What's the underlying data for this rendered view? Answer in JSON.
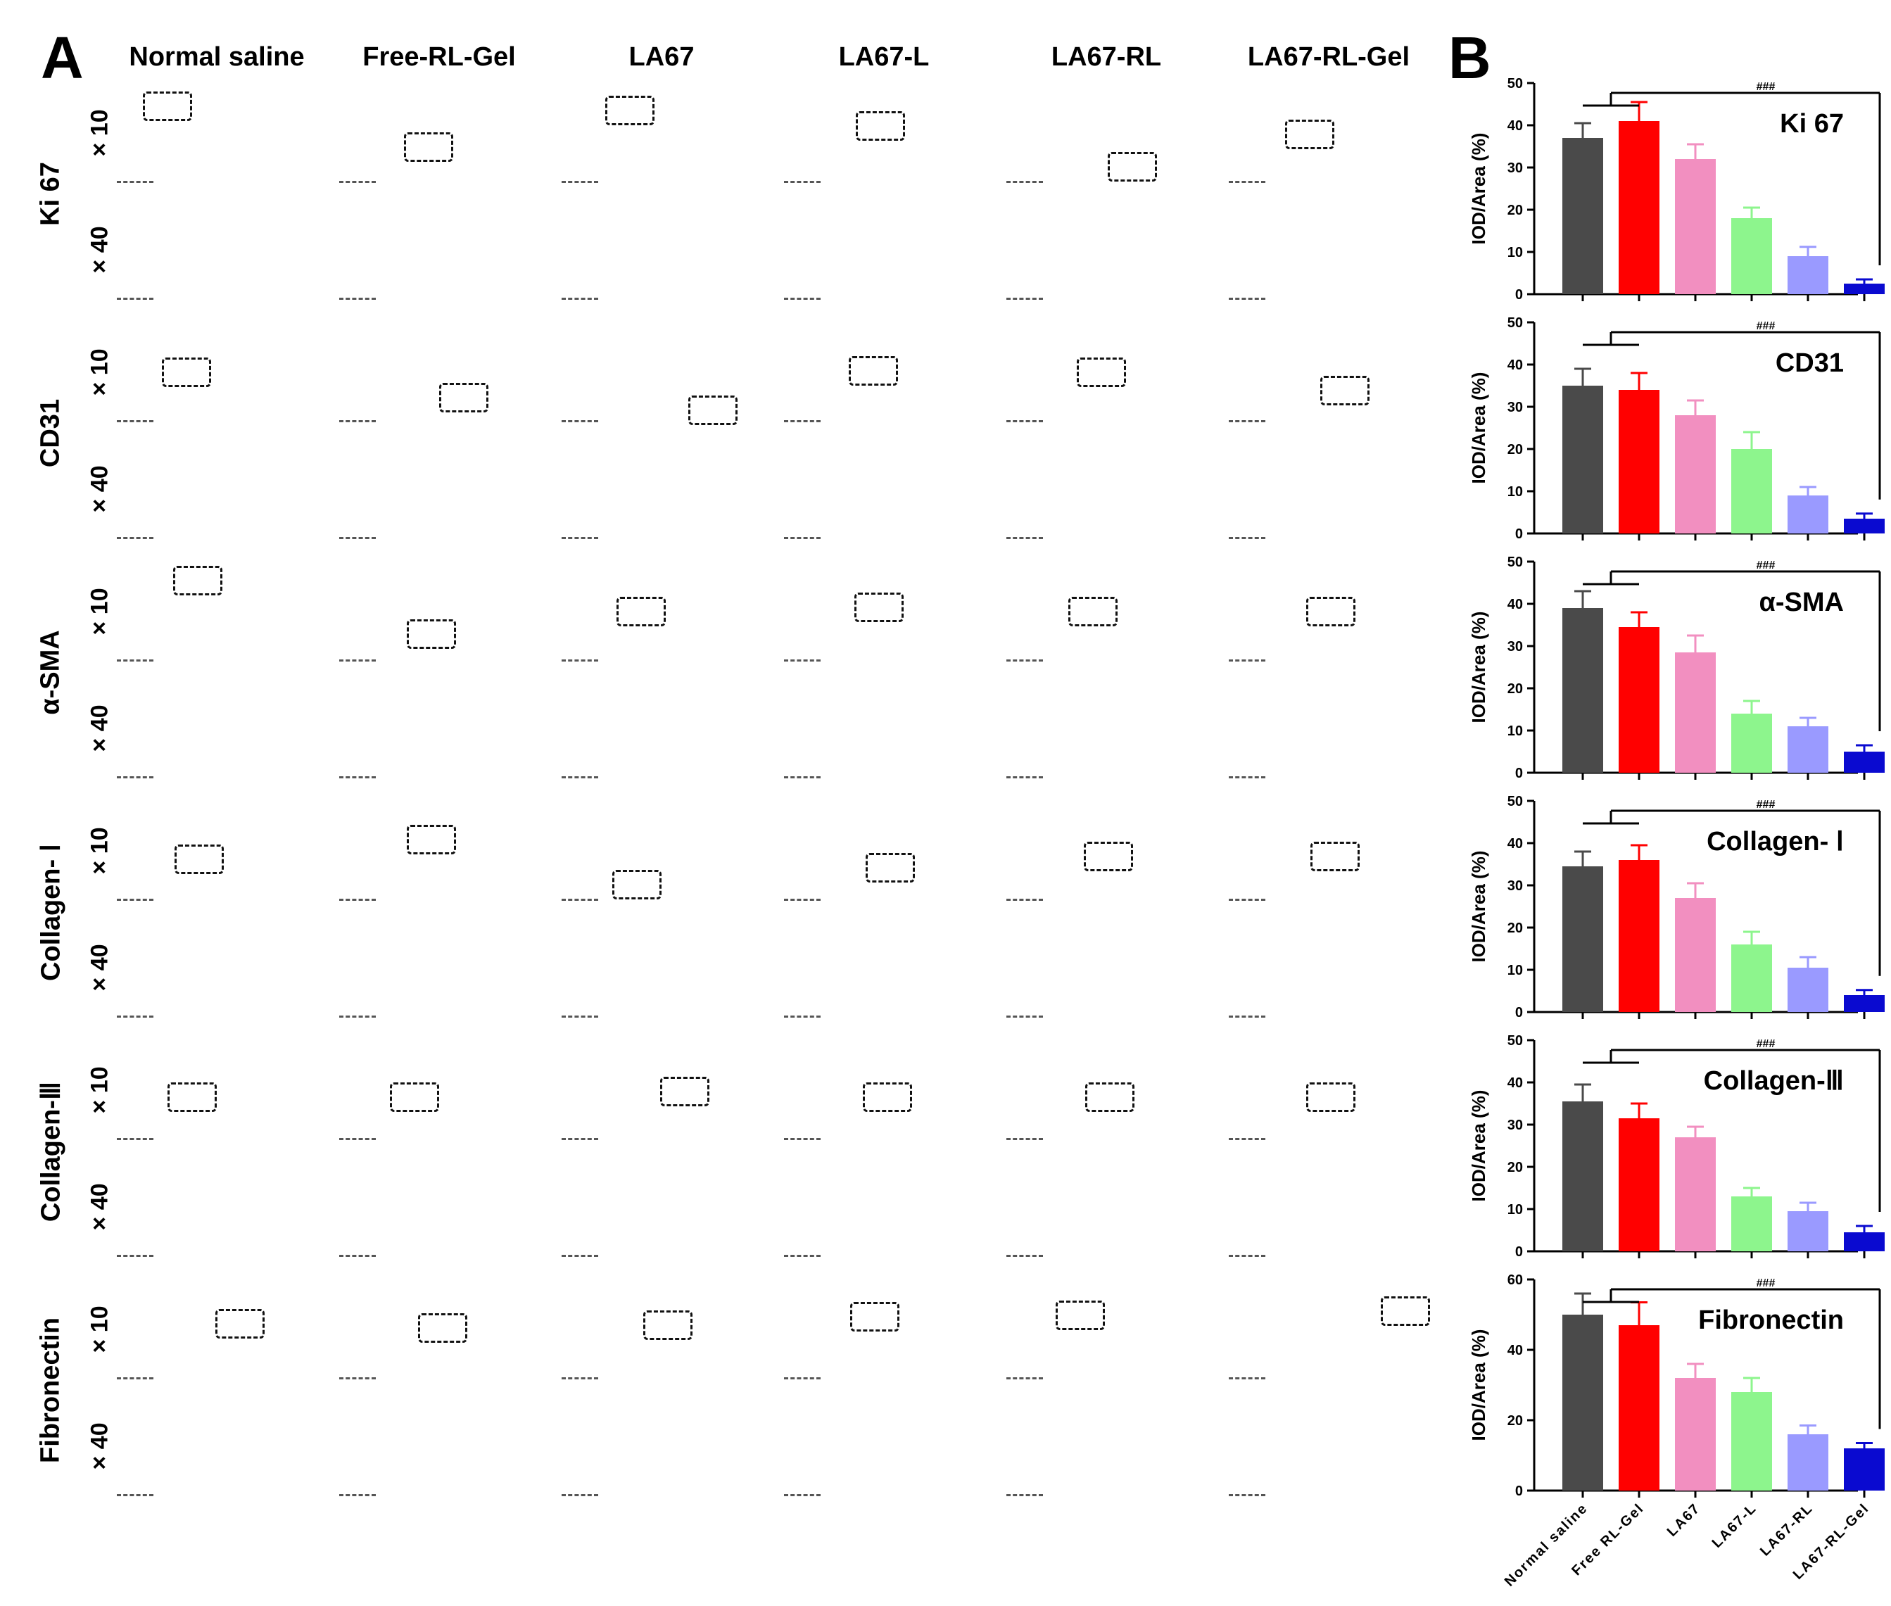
{
  "panels": {
    "a": "A",
    "b": "B"
  },
  "columns": [
    "Normal saline",
    "Free-RL-Gel",
    "LA67",
    "LA67-L",
    "LA67-RL",
    "LA67-RL-Gel"
  ],
  "markers": [
    "Ki 67",
    "CD31",
    "α-SMA",
    "Collagen- Ⅰ",
    "Collagen-Ⅲ",
    "Fibronectin"
  ],
  "magnifications": {
    "low": "× 10",
    "high": "× 40"
  },
  "colors": {
    "bar_colors": [
      "#4a4a4a",
      "#ff0000",
      "#f28fc0",
      "#8df58d",
      "#9a9aff",
      "#0a0ad0"
    ],
    "brown_stain": "#c49a6c",
    "purple_stain": "#b3b0d8",
    "bg_stain": "#e9e1d6"
  },
  "chart_data": [
    {
      "type": "bar",
      "title": "Ki 67",
      "ylabel": "IOD/Area (%)",
      "ylim": [
        0,
        50
      ],
      "yticks": [
        0,
        10,
        20,
        30,
        40,
        50
      ],
      "categories": [
        "Normal saline",
        "Free RL-Gel",
        "LA67",
        "LA67-L",
        "LA67-RL",
        "LA67-RL-Gel"
      ],
      "values": [
        37,
        41,
        32,
        18,
        9,
        2.5
      ],
      "errors": [
        3.5,
        4.5,
        3.5,
        2.5,
        2.2,
        1.0
      ],
      "significance": "###"
    },
    {
      "type": "bar",
      "title": "CD31",
      "ylabel": "IOD/Area (%)",
      "ylim": [
        0,
        50
      ],
      "yticks": [
        0,
        10,
        20,
        30,
        40,
        50
      ],
      "categories": [
        "Normal saline",
        "Free RL-Gel",
        "LA67",
        "LA67-L",
        "LA67-RL",
        "LA67-RL-Gel"
      ],
      "values": [
        35,
        34,
        28,
        20,
        9,
        3.5
      ],
      "errors": [
        4.0,
        4.0,
        3.5,
        4.0,
        2.0,
        1.2
      ],
      "significance": "###"
    },
    {
      "type": "bar",
      "title": "α-SMA",
      "ylabel": "IOD/Area (%)",
      "ylim": [
        0,
        50
      ],
      "yticks": [
        0,
        10,
        20,
        30,
        40,
        50
      ],
      "categories": [
        "Normal saline",
        "Free RL-Gel",
        "LA67",
        "LA67-L",
        "LA67-RL",
        "LA67-RL-Gel"
      ],
      "values": [
        39,
        34.5,
        28.5,
        14,
        11,
        5
      ],
      "errors": [
        4.0,
        3.5,
        4.0,
        3.0,
        2.0,
        1.5
      ],
      "significance": "###"
    },
    {
      "type": "bar",
      "title": "Collagen- Ⅰ",
      "ylabel": "IOD/Area (%)",
      "ylim": [
        0,
        50
      ],
      "yticks": [
        0,
        10,
        20,
        30,
        40,
        50
      ],
      "categories": [
        "Normal saline",
        "Free RL-Gel",
        "LA67",
        "LA67-L",
        "LA67-RL",
        "LA67-RL-Gel"
      ],
      "values": [
        34.5,
        36,
        27,
        16,
        10.5,
        4
      ],
      "errors": [
        3.5,
        3.5,
        3.5,
        3.0,
        2.5,
        1.2
      ],
      "significance": "###"
    },
    {
      "type": "bar",
      "title": "Collagen-Ⅲ",
      "ylabel": "IOD/Area (%)",
      "ylim": [
        0,
        50
      ],
      "yticks": [
        0,
        10,
        20,
        30,
        40,
        50
      ],
      "categories": [
        "Normal saline",
        "Free RL-Gel",
        "LA67",
        "LA67-L",
        "LA67-RL",
        "LA67-RL-Gel"
      ],
      "values": [
        35.5,
        31.5,
        27,
        13,
        9.5,
        4.5
      ],
      "errors": [
        4.0,
        3.5,
        2.5,
        2.0,
        2.0,
        1.5
      ],
      "significance": "###"
    },
    {
      "type": "bar",
      "title": "Fibronectin",
      "ylabel": "IOD/Area (%)",
      "ylim": [
        0,
        60
      ],
      "yticks": [
        0,
        20,
        40,
        60
      ],
      "categories": [
        "Normal saline",
        "Free RL-Gel",
        "LA67",
        "LA67-L",
        "LA67-RL",
        "LA67-RL-Gel"
      ],
      "values": [
        50,
        47,
        32,
        28,
        16,
        12
      ],
      "errors": [
        6.0,
        6.5,
        4.0,
        4.0,
        2.5,
        1.5
      ],
      "significance": "###"
    }
  ]
}
